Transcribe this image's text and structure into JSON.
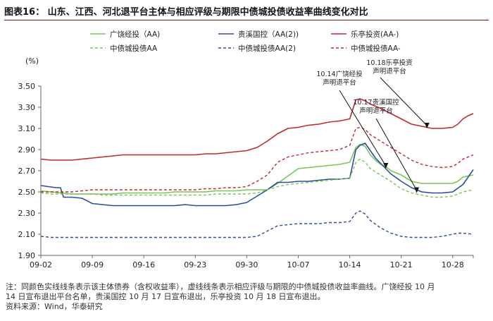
{
  "header": {
    "title": "图表16：  山东、江西、河北退平台主体与相应评级与期限中债城投债收益率曲线变化对比"
  },
  "footer": {
    "note_line1": "注：同颜色实线线条表示该主体债券（含权收益率），虚线线条表示相应评级与期限的中债城投债收益率曲线。广饶经投 10 月",
    "note_line2": "14 日宣布退出平台名单，贵溪国控 10 月 17 日宣布退出，乐亭投资 10 月 18 日宣布退出。",
    "source": "资料来源：Wind，华泰研究"
  },
  "chart_data": {
    "type": "line",
    "title": "",
    "unit_label": "(%)",
    "xlabel": "",
    "ylabel": "",
    "ylim": [
      1.9,
      3.5
    ],
    "yticks": [
      "1.90",
      "2.10",
      "2.30",
      "2.50",
      "2.70",
      "2.90",
      "3.10",
      "3.30",
      "3.50"
    ],
    "xticks": [
      "09-02",
      "09-09",
      "09-16",
      "09-23",
      "09-30",
      "10-07",
      "10-14",
      "10-21",
      "10-28"
    ],
    "x_index_range": [
      0,
      42
    ],
    "grid": false,
    "legend_position": "top",
    "series": [
      {
        "name": "广饶经投（AA)",
        "color": "#7cc35a",
        "dash": false,
        "points": [
          [
            0,
            2.51
          ],
          [
            1,
            2.5
          ],
          [
            2,
            2.49
          ],
          [
            3,
            2.48
          ],
          [
            4,
            2.48
          ],
          [
            5,
            2.48
          ],
          [
            6,
            2.48
          ],
          [
            7,
            2.48
          ],
          [
            8,
            2.49
          ],
          [
            9,
            2.49
          ],
          [
            10,
            2.49
          ],
          [
            11,
            2.49
          ],
          [
            12,
            2.49
          ],
          [
            13,
            2.5
          ],
          [
            14,
            2.5
          ],
          [
            15,
            2.5
          ],
          [
            16,
            2.5
          ],
          [
            17,
            2.51
          ],
          [
            18,
            2.51
          ],
          [
            19,
            2.51
          ],
          [
            20,
            2.52
          ],
          [
            21,
            2.52
          ],
          [
            22,
            2.52
          ],
          [
            23,
            2.58
          ],
          [
            24,
            2.65
          ],
          [
            25,
            2.72
          ],
          [
            26,
            2.73
          ],
          [
            27,
            2.74
          ],
          [
            28,
            2.75
          ],
          [
            29,
            2.76
          ],
          [
            30,
            2.78
          ],
          [
            30.6,
            2.92
          ],
          [
            31,
            2.95
          ],
          [
            31.5,
            2.93
          ],
          [
            32,
            2.85
          ],
          [
            32.5,
            2.8
          ],
          [
            33,
            2.76
          ],
          [
            33.5,
            2.74
          ],
          [
            34,
            2.7
          ],
          [
            35,
            2.66
          ],
          [
            36,
            2.6
          ],
          [
            37,
            2.58
          ],
          [
            38,
            2.58
          ],
          [
            39,
            2.58
          ],
          [
            40,
            2.58
          ],
          [
            40.5,
            2.6
          ],
          [
            41,
            2.64
          ],
          [
            42,
            2.66
          ]
        ]
      },
      {
        "name": "贵溪国控（AA(2))",
        "color": "#2a4f96",
        "dash": false,
        "points": [
          [
            0,
            2.56
          ],
          [
            0.7,
            2.55
          ],
          [
            1.5,
            2.54
          ],
          [
            1.9,
            2.54
          ],
          [
            2.2,
            2.45
          ],
          [
            3,
            2.45
          ],
          [
            4,
            2.44
          ],
          [
            5,
            2.39
          ],
          [
            6,
            2.38
          ],
          [
            7,
            2.37
          ],
          [
            8,
            2.37
          ],
          [
            9,
            2.37
          ],
          [
            10,
            2.37
          ],
          [
            11,
            2.37
          ],
          [
            12,
            2.37
          ],
          [
            13,
            2.37
          ],
          [
            14,
            2.38
          ],
          [
            15,
            2.37
          ],
          [
            16,
            2.37
          ],
          [
            17,
            2.37
          ],
          [
            18,
            2.37
          ],
          [
            19,
            2.38
          ],
          [
            20,
            2.4
          ],
          [
            21,
            2.46
          ],
          [
            22,
            2.52
          ],
          [
            23,
            2.59
          ],
          [
            24,
            2.59
          ],
          [
            25,
            2.6
          ],
          [
            26,
            2.6
          ],
          [
            27,
            2.61
          ],
          [
            28,
            2.62
          ],
          [
            29,
            2.62
          ],
          [
            30,
            2.63
          ],
          [
            30.6,
            2.9
          ],
          [
            31,
            2.94
          ],
          [
            31.5,
            2.96
          ],
          [
            32,
            2.89
          ],
          [
            32.5,
            2.82
          ],
          [
            33,
            2.77
          ],
          [
            33.5,
            2.72
          ],
          [
            34,
            2.67
          ],
          [
            35,
            2.6
          ],
          [
            36,
            2.54
          ],
          [
            37,
            2.5
          ],
          [
            38,
            2.49
          ],
          [
            39,
            2.49
          ],
          [
            40,
            2.5
          ],
          [
            41,
            2.57
          ],
          [
            42,
            2.71
          ]
        ]
      },
      {
        "name": "乐亭投资(AA-)",
        "color": "#c0282d",
        "dash": false,
        "points": [
          [
            0,
            2.81
          ],
          [
            1,
            2.8
          ],
          [
            2,
            2.8
          ],
          [
            3,
            2.8
          ],
          [
            4,
            2.81
          ],
          [
            5,
            2.82
          ],
          [
            6,
            2.83
          ],
          [
            7,
            2.84
          ],
          [
            8,
            2.85
          ],
          [
            9,
            2.85
          ],
          [
            10,
            2.85
          ],
          [
            11,
            2.85
          ],
          [
            12,
            2.85
          ],
          [
            13,
            2.85
          ],
          [
            14,
            2.85
          ],
          [
            15,
            2.85
          ],
          [
            16,
            2.86
          ],
          [
            17,
            2.86
          ],
          [
            18,
            2.87
          ],
          [
            19,
            2.88
          ],
          [
            20,
            2.89
          ],
          [
            21,
            2.92
          ],
          [
            22,
            2.98
          ],
          [
            23,
            3.05
          ],
          [
            24,
            3.1
          ],
          [
            25,
            3.11
          ],
          [
            26,
            3.13
          ],
          [
            27,
            3.14
          ],
          [
            28,
            3.16
          ],
          [
            29,
            3.17
          ],
          [
            30,
            3.19
          ],
          [
            30.6,
            3.37
          ],
          [
            31,
            3.38
          ],
          [
            31.5,
            3.36
          ],
          [
            32,
            3.33
          ],
          [
            33,
            3.29
          ],
          [
            34,
            3.24
          ],
          [
            35,
            3.19
          ],
          [
            36,
            3.14
          ],
          [
            37,
            3.12
          ],
          [
            38,
            3.1
          ],
          [
            39,
            3.1
          ],
          [
            40,
            3.11
          ],
          [
            40.5,
            3.14
          ],
          [
            41,
            3.19
          ],
          [
            41.5,
            3.22
          ],
          [
            42,
            3.24
          ]
        ]
      },
      {
        "name": "中债城投债AA",
        "color": "#7cc35a",
        "dash": true,
        "points": [
          [
            0,
            2.49
          ],
          [
            1,
            2.48
          ],
          [
            2,
            2.48
          ],
          [
            3,
            2.48
          ],
          [
            4,
            2.48
          ],
          [
            5,
            2.48
          ],
          [
            6,
            2.47
          ],
          [
            7,
            2.47
          ],
          [
            8,
            2.47
          ],
          [
            9,
            2.47
          ],
          [
            10,
            2.47
          ],
          [
            11,
            2.47
          ],
          [
            12,
            2.47
          ],
          [
            13,
            2.47
          ],
          [
            14,
            2.47
          ],
          [
            15,
            2.47
          ],
          [
            16,
            2.47
          ],
          [
            17,
            2.48
          ],
          [
            18,
            2.48
          ],
          [
            19,
            2.48
          ],
          [
            20,
            2.48
          ],
          [
            21,
            2.49
          ],
          [
            22,
            2.52
          ],
          [
            23,
            2.55
          ],
          [
            24,
            2.57
          ],
          [
            25,
            2.58
          ],
          [
            26,
            2.59
          ],
          [
            27,
            2.6
          ],
          [
            28,
            2.61
          ],
          [
            29,
            2.62
          ],
          [
            30,
            2.63
          ],
          [
            30.6,
            2.78
          ],
          [
            31,
            2.81
          ],
          [
            31.5,
            2.78
          ],
          [
            32,
            2.72
          ],
          [
            33,
            2.66
          ],
          [
            34,
            2.6
          ],
          [
            35,
            2.53
          ],
          [
            36,
            2.49
          ],
          [
            37,
            2.47
          ],
          [
            38,
            2.45
          ],
          [
            39,
            2.45
          ],
          [
            40,
            2.46
          ],
          [
            40.5,
            2.48
          ],
          [
            41,
            2.5
          ],
          [
            42,
            2.52
          ]
        ]
      },
      {
        "name": "中债城投债AA(2)",
        "color": "#2a4f96",
        "dash": true,
        "points": [
          [
            0,
            2.08
          ],
          [
            1,
            2.07
          ],
          [
            2,
            2.07
          ],
          [
            3,
            2.07
          ],
          [
            4,
            2.07
          ],
          [
            5,
            2.07
          ],
          [
            6,
            2.07
          ],
          [
            7,
            2.07
          ],
          [
            8,
            2.07
          ],
          [
            9,
            2.07
          ],
          [
            10,
            2.07
          ],
          [
            11,
            2.07
          ],
          [
            12,
            2.07
          ],
          [
            13,
            2.07
          ],
          [
            14,
            2.07
          ],
          [
            15,
            2.07
          ],
          [
            16,
            2.07
          ],
          [
            17,
            2.07
          ],
          [
            18,
            2.07
          ],
          [
            19,
            2.07
          ],
          [
            20,
            2.07
          ],
          [
            21,
            2.08
          ],
          [
            22,
            2.13
          ],
          [
            23,
            2.18
          ],
          [
            24,
            2.19
          ],
          [
            25,
            2.2
          ],
          [
            26,
            2.2
          ],
          [
            27,
            2.2
          ],
          [
            28,
            2.21
          ],
          [
            29,
            2.21
          ],
          [
            30,
            2.22
          ],
          [
            30.6,
            2.3
          ],
          [
            31,
            2.32
          ],
          [
            31.5,
            2.29
          ],
          [
            32,
            2.23
          ],
          [
            33,
            2.16
          ],
          [
            34,
            2.11
          ],
          [
            35,
            2.08
          ],
          [
            36,
            2.07
          ],
          [
            37,
            2.07
          ],
          [
            38,
            2.07
          ],
          [
            39,
            2.08
          ],
          [
            40,
            2.1
          ],
          [
            40.5,
            2.11
          ],
          [
            41,
            2.11
          ],
          [
            42,
            2.1
          ]
        ]
      },
      {
        "name": "中债城投债AA-",
        "color": "#c0282d",
        "dash": true,
        "points": [
          [
            0,
            2.5
          ],
          [
            1,
            2.5
          ],
          [
            2,
            2.5
          ],
          [
            3,
            2.5
          ],
          [
            4,
            2.51
          ],
          [
            5,
            2.52
          ],
          [
            6,
            2.52
          ],
          [
            7,
            2.52
          ],
          [
            8,
            2.52
          ],
          [
            9,
            2.52
          ],
          [
            10,
            2.52
          ],
          [
            11,
            2.52
          ],
          [
            12,
            2.52
          ],
          [
            13,
            2.52
          ],
          [
            14,
            2.52
          ],
          [
            15,
            2.52
          ],
          [
            16,
            2.53
          ],
          [
            17,
            2.53
          ],
          [
            18,
            2.54
          ],
          [
            19,
            2.54
          ],
          [
            20,
            2.55
          ],
          [
            21,
            2.6
          ],
          [
            22,
            2.66
          ],
          [
            23,
            2.78
          ],
          [
            24,
            2.83
          ],
          [
            25,
            2.85
          ],
          [
            26,
            2.87
          ],
          [
            27,
            2.88
          ],
          [
            28,
            2.89
          ],
          [
            29,
            2.9
          ],
          [
            30,
            2.94
          ],
          [
            30.6,
            3.1
          ],
          [
            31,
            3.11
          ],
          [
            31.5,
            3.09
          ],
          [
            32,
            3.04
          ],
          [
            33,
            2.98
          ],
          [
            34,
            2.92
          ],
          [
            35,
            2.86
          ],
          [
            36,
            2.8
          ],
          [
            37,
            2.76
          ],
          [
            38,
            2.74
          ],
          [
            39,
            2.73
          ],
          [
            40,
            2.74
          ],
          [
            40.5,
            2.77
          ],
          [
            41,
            2.81
          ],
          [
            42,
            2.85
          ]
        ]
      }
    ],
    "annotations": [
      {
        "lines": [
          "10.14广饶经投",
          "声明退平台"
        ],
        "x": 33.5
      },
      {
        "lines": [
          "10.17贵溪国控",
          "声明退平台"
        ],
        "x": 36.5
      },
      {
        "lines": [
          "10.18乐亭投资",
          "声明退平台"
        ],
        "x": 37.5
      }
    ]
  }
}
